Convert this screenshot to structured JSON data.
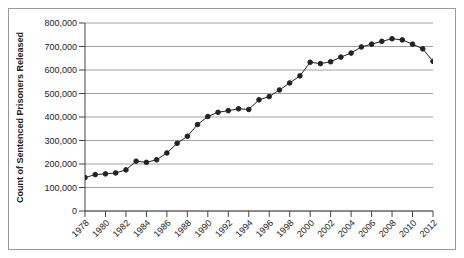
{
  "chart_data": {
    "type": "line",
    "y_label": "Count of Sentenced Prisoners Released",
    "x": [
      1978,
      1979,
      1980,
      1981,
      1982,
      1983,
      1984,
      1985,
      1986,
      1987,
      1988,
      1989,
      1990,
      1991,
      1992,
      1993,
      1994,
      1995,
      1996,
      1997,
      1998,
      1999,
      2000,
      2001,
      2002,
      2003,
      2004,
      2005,
      2006,
      2007,
      2008,
      2009,
      2010,
      2011,
      2012
    ],
    "values": [
      142000,
      155000,
      158000,
      162000,
      175000,
      212000,
      207000,
      218000,
      247000,
      288000,
      318000,
      368000,
      402000,
      420000,
      427000,
      435000,
      432000,
      473000,
      487000,
      515000,
      545000,
      575000,
      633000,
      627000,
      635000,
      655000,
      672000,
      698000,
      710000,
      722000,
      733000,
      728000,
      710000,
      690000,
      637000
    ],
    "color": "#222222",
    "marker": "circle",
    "xlim": [
      1978,
      2012
    ],
    "xticks": [
      1978,
      1980,
      1982,
      1984,
      1986,
      1988,
      1990,
      1992,
      1994,
      1996,
      1998,
      2000,
      2002,
      2004,
      2006,
      2008,
      2010,
      2012
    ],
    "ylim": [
      0,
      800000
    ],
    "yticks": [
      0,
      {
        "value": 100000,
        "label": "100,000"
      },
      {
        "value": 200000,
        "label": "200,000"
      },
      {
        "value": 300000,
        "label": "300,000"
      },
      {
        "value": 400000,
        "label": "400,000"
      },
      {
        "value": 500000,
        "label": "500,000"
      },
      {
        "value": 600000,
        "label": "600,000"
      },
      {
        "value": 700000,
        "label": "700,000"
      },
      {
        "value": 800000,
        "label": "800,000"
      }
    ],
    "grid": true
  }
}
